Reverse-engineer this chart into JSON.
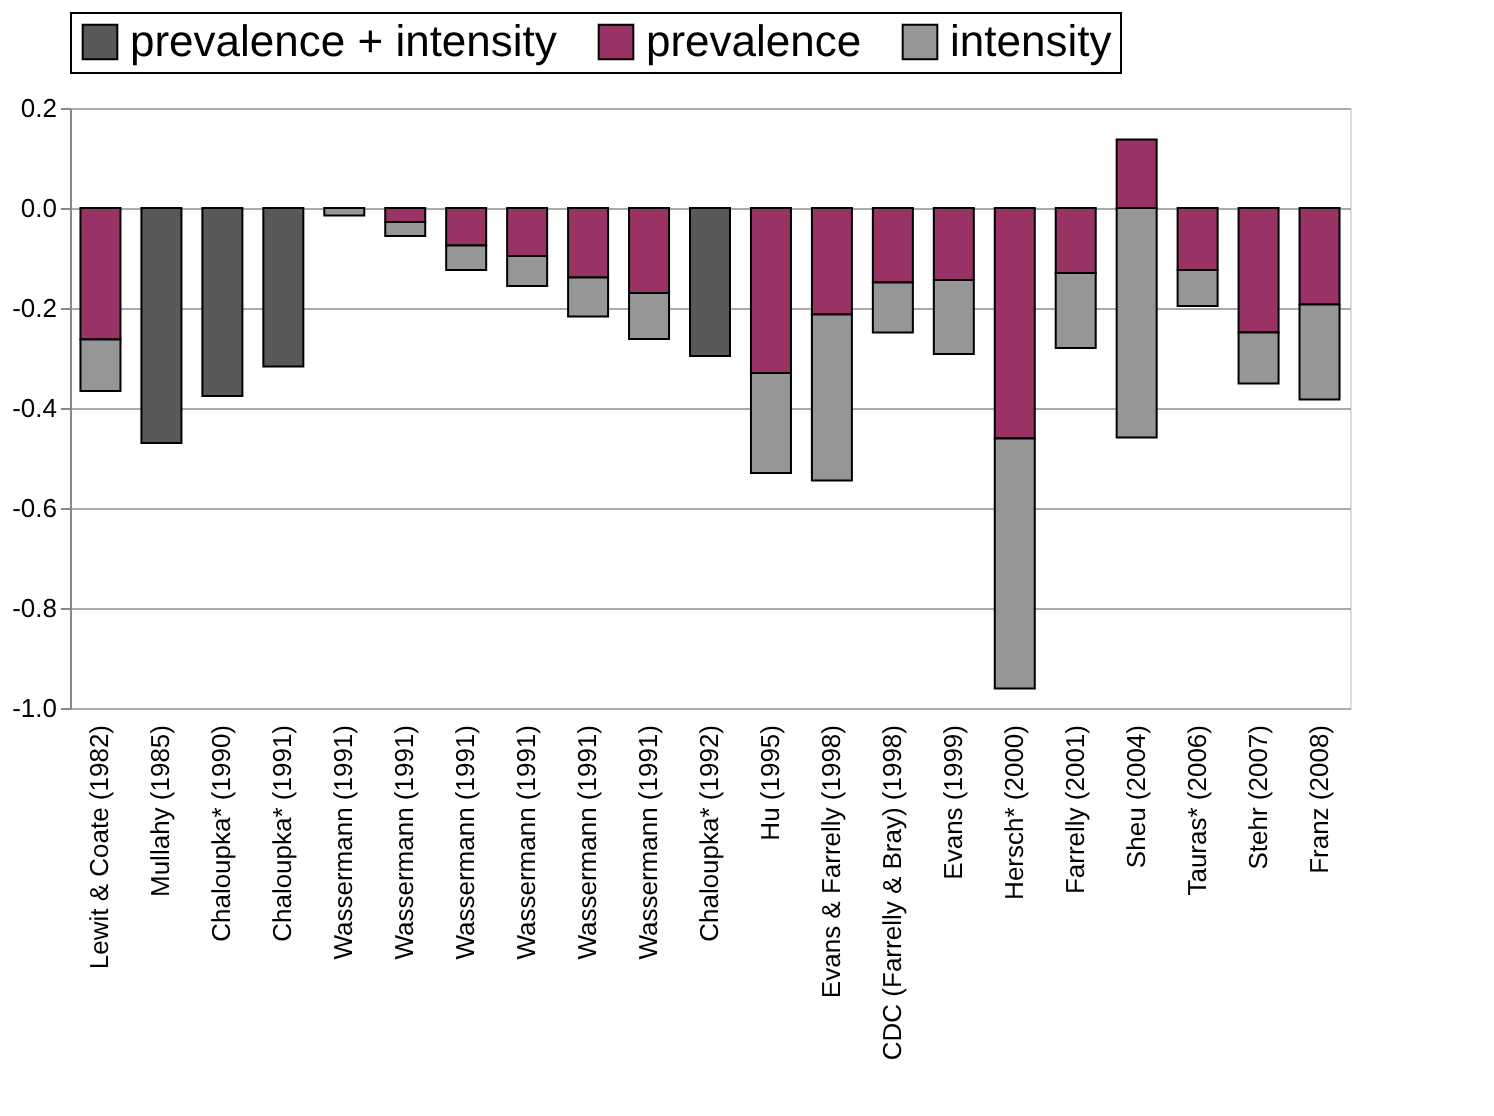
{
  "chart_data": {
    "type": "bar",
    "stacked": true,
    "categories": [
      "Lewit & Coate (1982)",
      "Mullahy (1985)",
      "Chaloupka* (1990)",
      "Chaloupka* (1991)",
      "Wassermann (1991)",
      "Wassermann (1991)",
      "Wassermann (1991)",
      "Wassermann (1991)",
      "Wassermann (1991)",
      "Wassermann (1991)",
      "Chaloupka* (1992)",
      "Hu (1995)",
      "Evans & Farrelly (1998)",
      "CDC (Farrelly & Bray) (1998)",
      "Evans (1999)",
      "Hersch* (2000)",
      "Farrelly (2001)",
      "Sheu (2004)",
      "Tauras* (2006)",
      "Stehr (2007)",
      "Franz (2008)"
    ],
    "series": [
      {
        "name": "prevalence + intensity",
        "color": "#595959",
        "values": [
          null,
          -0.47,
          -0.376,
          -0.317,
          null,
          null,
          null,
          null,
          null,
          null,
          -0.296,
          null,
          null,
          null,
          null,
          null,
          null,
          null,
          null,
          null,
          null
        ]
      },
      {
        "name": "prevalence",
        "color": "#993366",
        "values": [
          -0.263,
          null,
          null,
          null,
          null,
          -0.028,
          -0.075,
          -0.096,
          -0.139,
          -0.17,
          null,
          -0.33,
          -0.213,
          -0.149,
          -0.144,
          -0.461,
          -0.13,
          0.137,
          -0.124,
          -0.249,
          -0.193
        ]
      },
      {
        "name": "intensity",
        "color": "#969696",
        "values": [
          -0.103,
          null,
          null,
          null,
          -0.015,
          -0.028,
          -0.049,
          -0.06,
          -0.078,
          -0.092,
          null,
          -0.2,
          -0.332,
          -0.1,
          -0.148,
          -0.5,
          -0.15,
          -0.459,
          -0.072,
          -0.102,
          -0.19
        ]
      }
    ],
    "ylim": [
      -1.0,
      0.2
    ],
    "yticks": [
      {
        "value": -1.0,
        "label": "-1.0"
      },
      -0.8,
      -0.6,
      -0.4,
      -0.2,
      {
        "value": 0.0,
        "label": "0.0"
      },
      0.2
    ],
    "grid": "y",
    "legend": "top"
  }
}
